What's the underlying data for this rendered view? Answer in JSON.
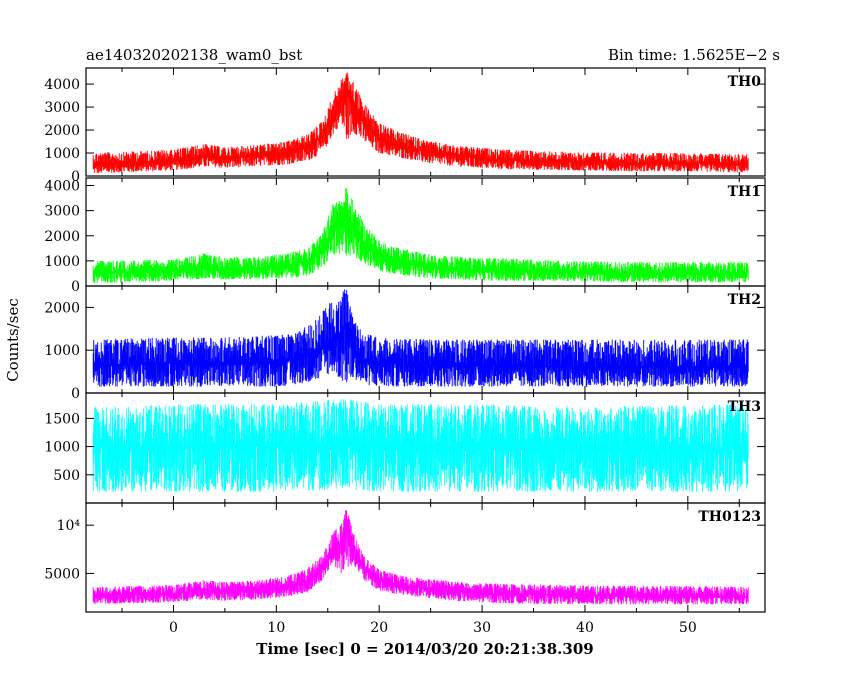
{
  "chart_data": {
    "type": "line",
    "title": "ae140320202138_wam0_bst",
    "subtitle": "Bin time: 1.5625E−2 s",
    "xlabel": "Time [sec] 0 = 2014/03/20 20:21:38.309",
    "ylabel": "Counts/sec",
    "xlim": [
      -8.5,
      57.5
    ],
    "x_ticks": [
      0,
      10,
      20,
      30,
      40,
      50
    ],
    "x_range_data": [
      -7.8,
      55.9
    ],
    "burst_peak_time": 16.8,
    "panels": [
      {
        "name": "TH0",
        "color": "#ff0000",
        "ylim": [
          0,
          4700
        ],
        "y_ticks": [
          0,
          1000,
          2000,
          3000,
          4000
        ],
        "y_tick_labels": [
          "0",
          "1000",
          "2000",
          "3000",
          "4000"
        ],
        "envelope": {
          "x": [
            -7.8,
            0,
            3,
            5,
            8,
            11,
            13,
            14.5,
            15.5,
            16.3,
            16.8,
            17.5,
            18.5,
            20,
            22,
            25,
            28,
            32,
            38,
            45,
            50,
            55.9
          ],
          "mean": [
            500,
            650,
            850,
            780,
            870,
            1000,
            1250,
            1700,
            2600,
            3300,
            3800,
            3100,
            2300,
            1600,
            1300,
            1000,
            850,
            700,
            600,
            550,
            550,
            500
          ],
          "lo": [
            100,
            250,
            400,
            350,
            420,
            500,
            650,
            1000,
            1800,
            2300,
            1500,
            1900,
            1500,
            1000,
            800,
            550,
            400,
            300,
            250,
            200,
            200,
            150
          ],
          "hi": [
            1000,
            1150,
            1400,
            1250,
            1350,
            1500,
            1800,
            2400,
            3500,
            4200,
            4600,
            4100,
            3200,
            2300,
            1900,
            1500,
            1300,
            1150,
            1050,
            1000,
            1000,
            950
          ]
        }
      },
      {
        "name": "TH1",
        "color": "#00ff00",
        "ylim": [
          0,
          4300
        ],
        "y_ticks": [
          0,
          1000,
          2000,
          3000,
          4000
        ],
        "y_tick_labels": [
          "0",
          "1000",
          "2000",
          "3000",
          "4000"
        ],
        "envelope": {
          "x": [
            -7.8,
            0,
            3,
            5,
            8,
            11,
            13,
            14.5,
            15.5,
            16.3,
            16.8,
            17.5,
            18.5,
            20,
            22,
            25,
            28,
            32,
            38,
            45,
            50,
            55.9
          ],
          "mean": [
            500,
            600,
            750,
            650,
            700,
            800,
            1000,
            1400,
            2200,
            2500,
            3000,
            2400,
            1700,
            1200,
            950,
            750,
            650,
            600,
            550,
            500,
            500,
            500
          ],
          "lo": [
            100,
            200,
            300,
            250,
            280,
            300,
            400,
            700,
            1300,
            1000,
            1200,
            1200,
            900,
            600,
            450,
            300,
            250,
            200,
            200,
            150,
            150,
            150
          ],
          "hi": [
            1000,
            1050,
            1300,
            1150,
            1150,
            1300,
            1500,
            2100,
            3300,
            3400,
            4100,
            3400,
            2500,
            1800,
            1500,
            1250,
            1150,
            1100,
            1000,
            950,
            950,
            950
          ]
        }
      },
      {
        "name": "TH2",
        "color": "#0000ff",
        "ylim": [
          0,
          2500
        ],
        "y_ticks": [
          0,
          1000,
          2000
        ],
        "y_tick_labels": [
          "0",
          "1000",
          "2000"
        ],
        "envelope": {
          "x": [
            -7.8,
            0,
            5,
            10,
            12,
            14,
            15.5,
            16.3,
            16.8,
            17.5,
            18.5,
            20,
            25,
            30,
            40,
            50,
            55.9
          ],
          "mean": [
            650,
            700,
            700,
            730,
            800,
            1000,
            1300,
            1400,
            1600,
            1000,
            750,
            700,
            650,
            650,
            600,
            600,
            600
          ],
          "lo": [
            150,
            150,
            150,
            150,
            200,
            300,
            500,
            300,
            200,
            350,
            200,
            150,
            150,
            150,
            150,
            150,
            150
          ],
          "hi": [
            1250,
            1300,
            1300,
            1350,
            1400,
            1750,
            2200,
            2300,
            2500,
            1700,
            1400,
            1300,
            1250,
            1250,
            1250,
            1250,
            1250
          ]
        }
      },
      {
        "name": "TH3",
        "color": "#00ffff",
        "ylim": [
          0,
          1950
        ],
        "y_ticks": [
          500,
          1000,
          1500
        ],
        "y_tick_labels": [
          "500",
          "1000",
          "1500"
        ],
        "envelope": {
          "x": [
            -7.8,
            0,
            10,
            16.8,
            20,
            30,
            40,
            55.9
          ],
          "mean": [
            1000,
            1000,
            1000,
            1050,
            1000,
            1000,
            950,
            950
          ],
          "lo": [
            200,
            200,
            200,
            250,
            200,
            200,
            200,
            200
          ],
          "hi": [
            1700,
            1750,
            1750,
            1850,
            1750,
            1750,
            1700,
            1750
          ]
        }
      },
      {
        "name": "TH0123",
        "color": "#ff00ff",
        "ylim": [
          1000,
          12300
        ],
        "y_ticks": [
          5000,
          10000
        ],
        "y_tick_labels": [
          "5000",
          "10⁴"
        ],
        "envelope": {
          "x": [
            -7.8,
            0,
            3,
            5,
            8,
            11,
            13,
            14.5,
            15.5,
            16.3,
            16.8,
            17.5,
            18.5,
            20,
            22,
            25,
            28,
            32,
            38,
            45,
            50,
            55.9
          ],
          "mean": [
            2700,
            2900,
            3300,
            3100,
            3300,
            3600,
            4200,
            5500,
            7500,
            8000,
            10500,
            7500,
            5500,
            4300,
            3800,
            3400,
            3100,
            2900,
            2800,
            2700,
            2700,
            2600
          ],
          "lo": [
            1800,
            2000,
            2300,
            2100,
            2300,
            2600,
            3000,
            4300,
            6000,
            5000,
            5500,
            6000,
            4300,
            3200,
            2800,
            2400,
            2100,
            1900,
            1800,
            1800,
            1800,
            1800
          ],
          "hi": [
            3600,
            3800,
            4300,
            4100,
            4300,
            4700,
            5500,
            6900,
            9300,
            10000,
            11900,
            9200,
            6800,
            5400,
            4800,
            4400,
            4100,
            3900,
            3800,
            3700,
            3700,
            3600
          ]
        }
      }
    ]
  }
}
